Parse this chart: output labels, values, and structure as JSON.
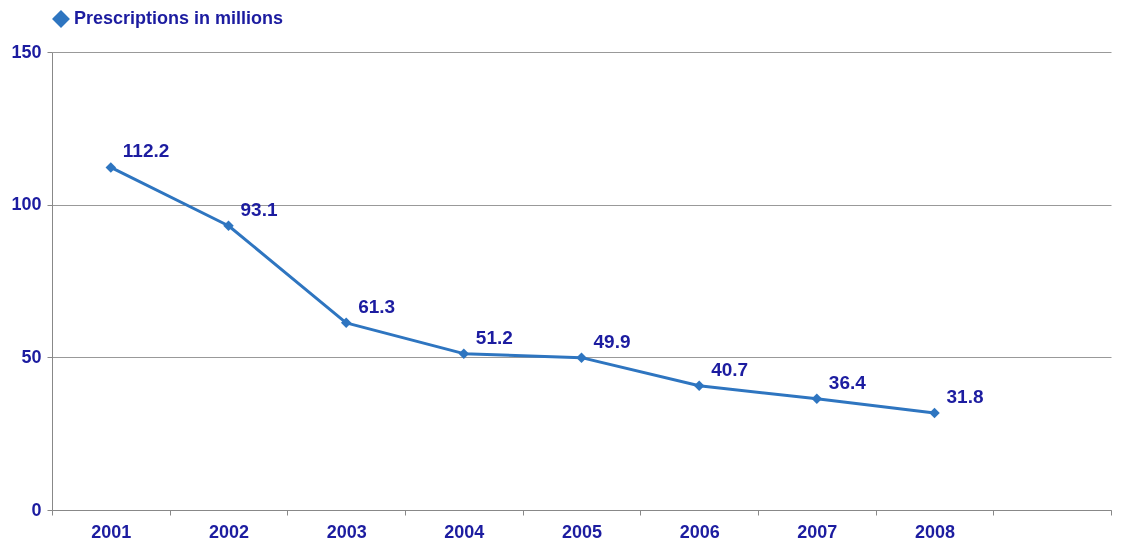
{
  "chart_data": {
    "type": "line",
    "categories": [
      "2001",
      "2002",
      "2003",
      "2004",
      "2005",
      "2006",
      "2007",
      "2008",
      null
    ],
    "series": [
      {
        "name": "Prescriptions in millions",
        "color": "#2e75c0",
        "values": [
          112.2,
          93.1,
          61.3,
          51.2,
          49.9,
          40.7,
          36.4,
          31.8,
          null
        ]
      }
    ],
    "ylim": [
      0,
      150
    ],
    "yticks": [
      0,
      50,
      100,
      150
    ],
    "grid": "y",
    "legend": "top",
    "marker": "diamond",
    "line_style": "solid",
    "data_labels": true
  }
}
